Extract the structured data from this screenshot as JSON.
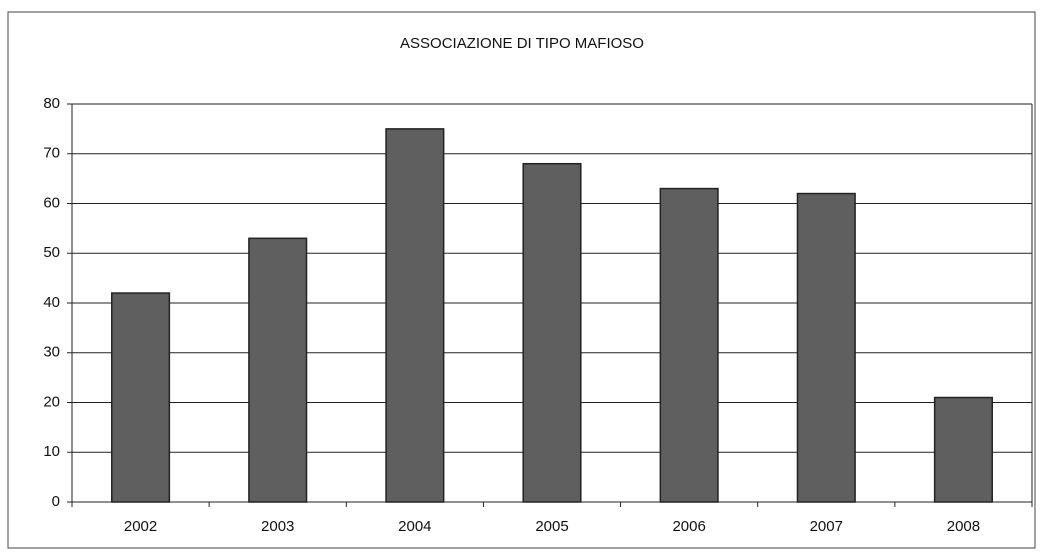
{
  "chart_data": {
    "type": "bar",
    "title": "ASSOCIAZIONE DI TIPO MAFIOSO",
    "categories": [
      "2002",
      "2003",
      "2004",
      "2005",
      "2006",
      "2007",
      "2008"
    ],
    "values": [
      42,
      53,
      75,
      68,
      63,
      62,
      21
    ],
    "color": "#5f5f5f",
    "ylim": [
      0,
      80
    ],
    "yticks": [
      0,
      10,
      20,
      30,
      40,
      50,
      60,
      70,
      80
    ],
    "grid": true
  }
}
